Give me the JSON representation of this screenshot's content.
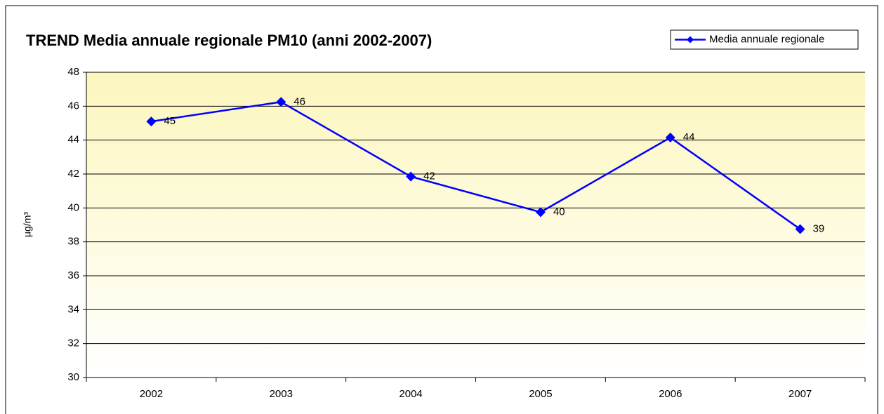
{
  "chart_data": {
    "type": "line",
    "title": "TREND Media annuale regionale PM10 (anni 2002-2007)",
    "y_label": "µg/m³",
    "categories": [
      "2002",
      "2003",
      "2004",
      "2005",
      "2006",
      "2007"
    ],
    "series": [
      {
        "name": "Media annuale regionale",
        "color": "#0000ff",
        "values": [
          45.1,
          46.25,
          41.85,
          39.75,
          44.15,
          38.75
        ],
        "value_labels": [
          "45",
          "46",
          "42",
          "40",
          "44",
          "39"
        ]
      }
    ],
    "ylim": [
      30,
      48
    ],
    "yticks": [
      30,
      32,
      34,
      36,
      38,
      40,
      42,
      44,
      46,
      48
    ],
    "grid": true,
    "legend": "top-right"
  }
}
